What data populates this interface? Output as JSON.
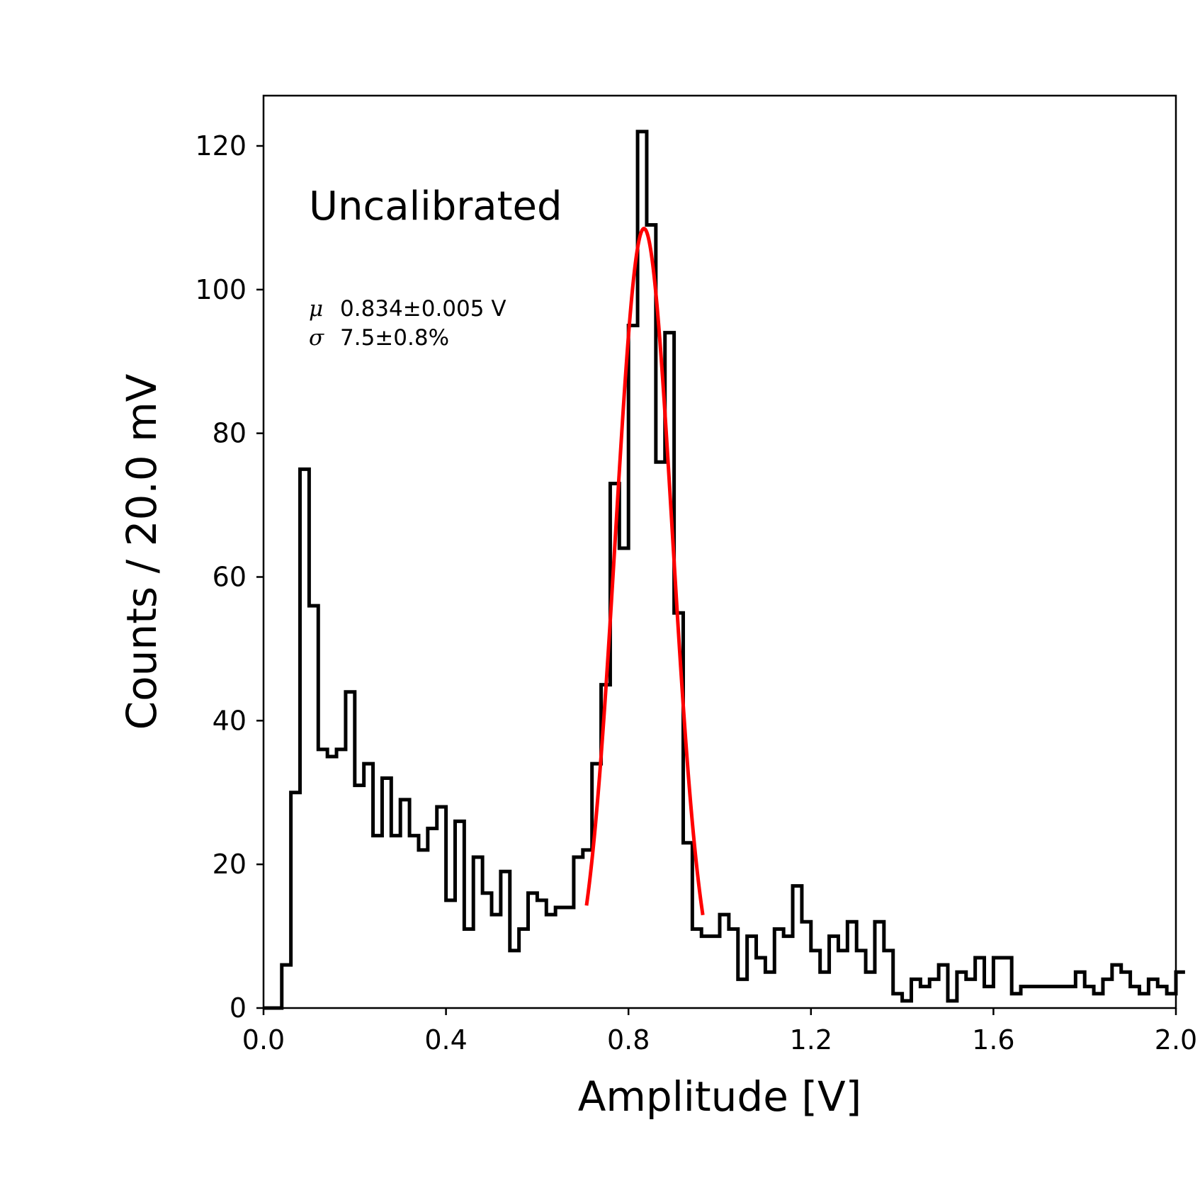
{
  "chart_data": {
    "type": "histogram",
    "xlabel": "Amplitude [V]",
    "ylabel": "Counts / 20.0 mV",
    "xlim": [
      0.0,
      2.0
    ],
    "ylim": [
      0,
      127
    ],
    "xticks": [
      "0.0",
      "0.4",
      "0.8",
      "1.2",
      "1.6",
      "2.0"
    ],
    "yticks": [
      "0",
      "20",
      "40",
      "60",
      "80",
      "100",
      "120"
    ],
    "grid": false,
    "bin_width": 0.02,
    "bin_start": 0.0,
    "counts": [
      0,
      0,
      6,
      30,
      75,
      56,
      36,
      35,
      36,
      44,
      31,
      34,
      24,
      32,
      24,
      29,
      24,
      22,
      25,
      28,
      15,
      26,
      11,
      21,
      16,
      13,
      19,
      8,
      11,
      16,
      15,
      13,
      14,
      14,
      21,
      22,
      34,
      45,
      73,
      64,
      95,
      122,
      109,
      76,
      94,
      55,
      23,
      11,
      10,
      10,
      13,
      11,
      4,
      10,
      7,
      5,
      11,
      10,
      17,
      12,
      8,
      5,
      10,
      8,
      12,
      8,
      5,
      12,
      8,
      2,
      1,
      4,
      3,
      4,
      6,
      1,
      5,
      4,
      7,
      3,
      7,
      7,
      2,
      3,
      3,
      3,
      3,
      3,
      3,
      5,
      3,
      2,
      4,
      6,
      5,
      3,
      2,
      4,
      3,
      2,
      5
    ],
    "series": [
      {
        "name": "",
        "kind": "step-histogram",
        "color": "#000000"
      },
      {
        "name": "",
        "kind": "gaussian-fit",
        "color": "#ff0000",
        "mu": 0.834,
        "sigma_fraction": 0.075,
        "amplitude": 108.5,
        "x_range": [
          0.708,
          0.963
        ]
      }
    ],
    "annotations": {
      "label": "Uncalibrated",
      "mu_symbol": "μ",
      "mu_text": "0.834±0.005 V",
      "sigma_symbol": "σ",
      "sigma_text": "7.5±0.8%"
    }
  }
}
